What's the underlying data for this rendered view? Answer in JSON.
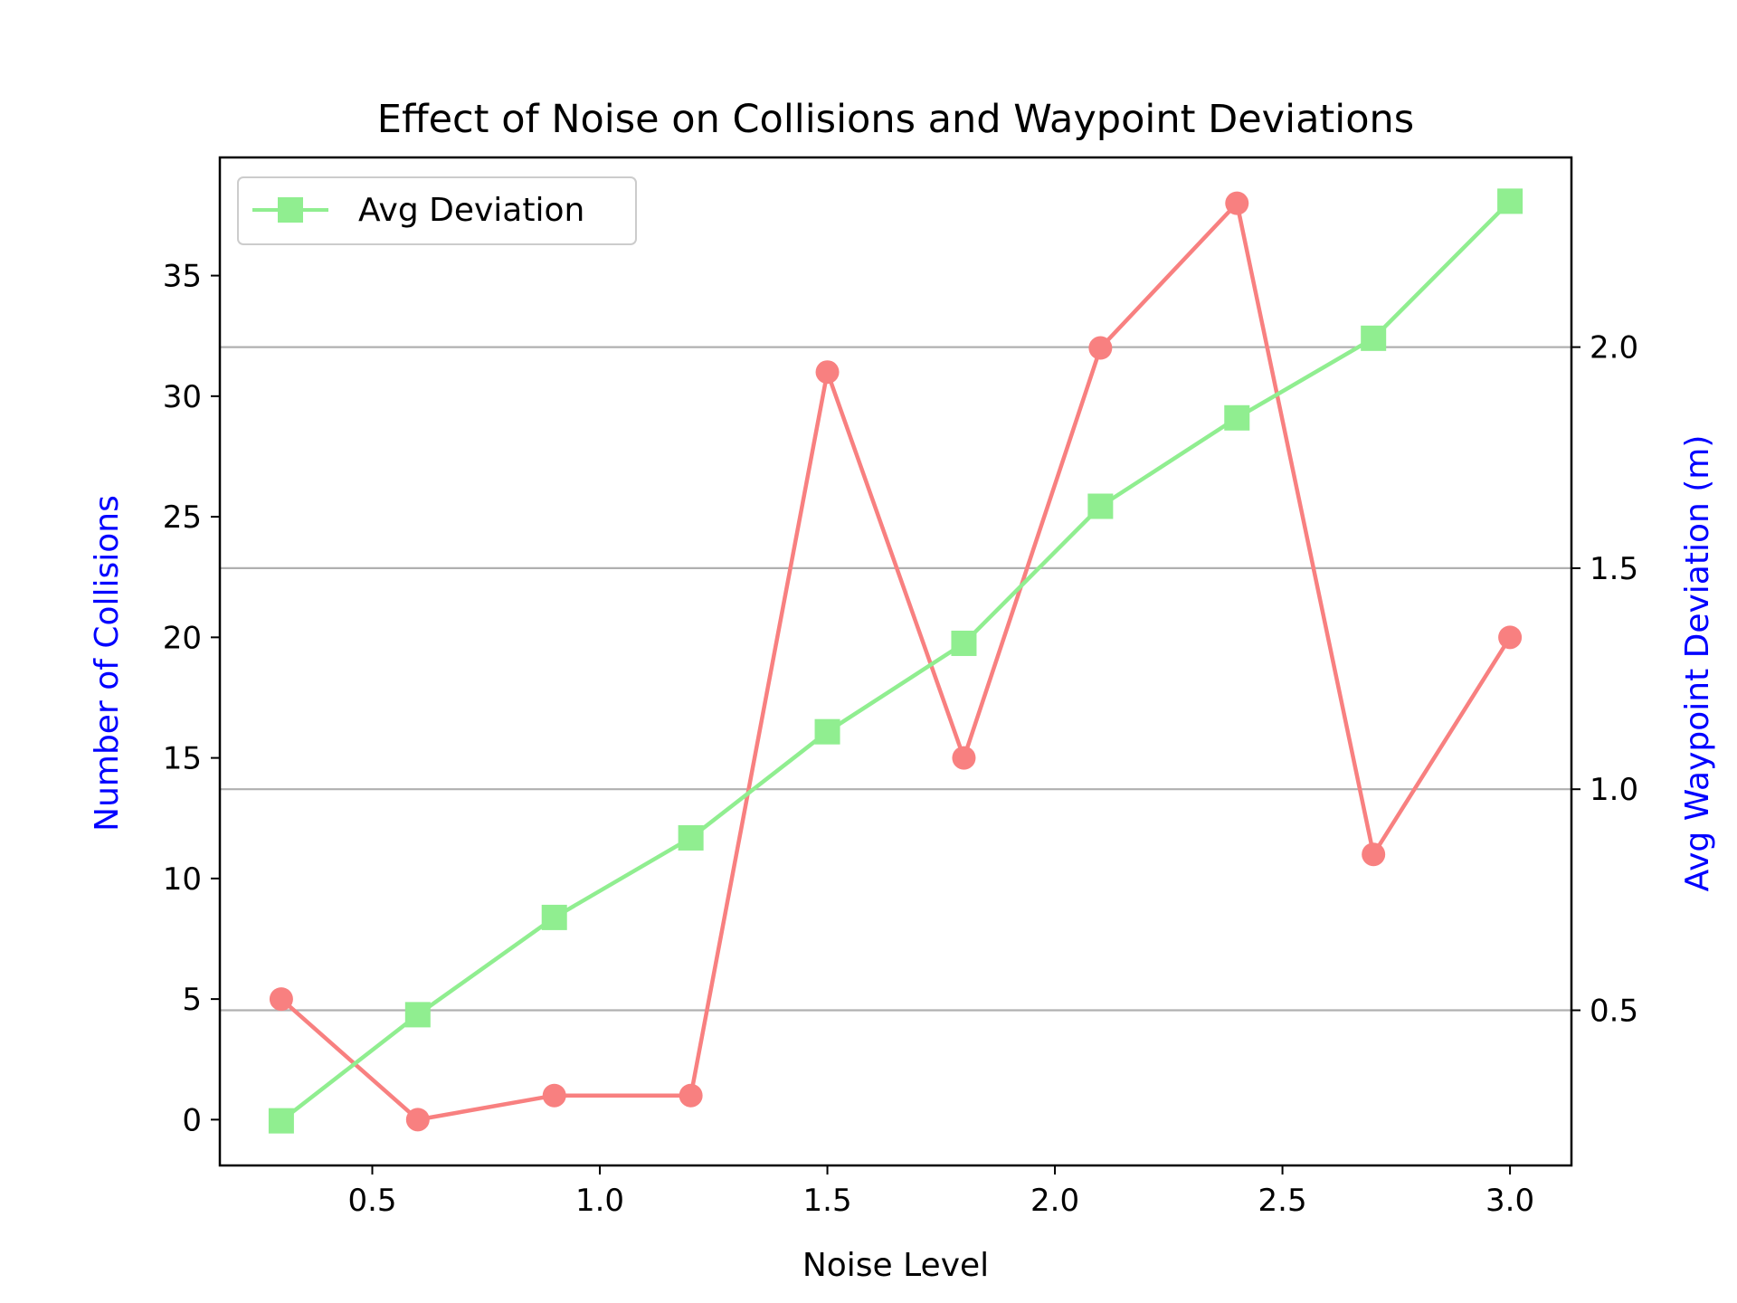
{
  "chart_data": {
    "type": "line",
    "title": "Effect of Noise on Collisions and Waypoint Deviations",
    "xlabel": "Noise Level",
    "ylabel_left": "Number of Collisions",
    "ylabel_right": "Avg Waypoint Deviation (m)",
    "ylabel_color": "#0000ff",
    "x": [
      0.3,
      0.6,
      0.9,
      1.2,
      1.5,
      1.8,
      2.1,
      2.4,
      2.7,
      3.0
    ],
    "xlim": [
      0.165,
      3.135
    ],
    "ylim_left": [
      -1.9,
      39.9
    ],
    "ylim_right": [
      0.149,
      2.429
    ],
    "xticks": [
      0.5,
      1.0,
      1.5,
      2.0,
      2.5,
      3.0
    ],
    "xtick_labels": [
      "0.5",
      "1.0",
      "1.5",
      "2.0",
      "2.5",
      "3.0"
    ],
    "yticks_left": [
      0,
      5,
      10,
      15,
      20,
      25,
      30,
      35
    ],
    "ytick_labels_left": [
      "0",
      "5",
      "10",
      "15",
      "20",
      "25",
      "30",
      "35"
    ],
    "yticks_right": [
      0.5,
      1.0,
      1.5,
      2.0
    ],
    "ytick_labels_right": [
      "0.5",
      "1.0",
      "1.5",
      "2.0"
    ],
    "grid": "horizontal lines at right-axis ticks",
    "series": [
      {
        "key": "collisions",
        "axis": "left",
        "color": "#f88080",
        "marker": "circle",
        "values": [
          5,
          0,
          1,
          1,
          31,
          15,
          32,
          38,
          11,
          20
        ]
      },
      {
        "key": "deviation",
        "name": "Avg Deviation",
        "axis": "right",
        "color": "#90ee90",
        "marker": "square",
        "values": [
          0.25,
          0.49,
          0.71,
          0.89,
          1.13,
          1.33,
          1.64,
          1.84,
          2.02,
          2.33
        ]
      }
    ],
    "legend": {
      "placement": "upper-left",
      "entries": [
        "Avg Deviation"
      ]
    }
  }
}
